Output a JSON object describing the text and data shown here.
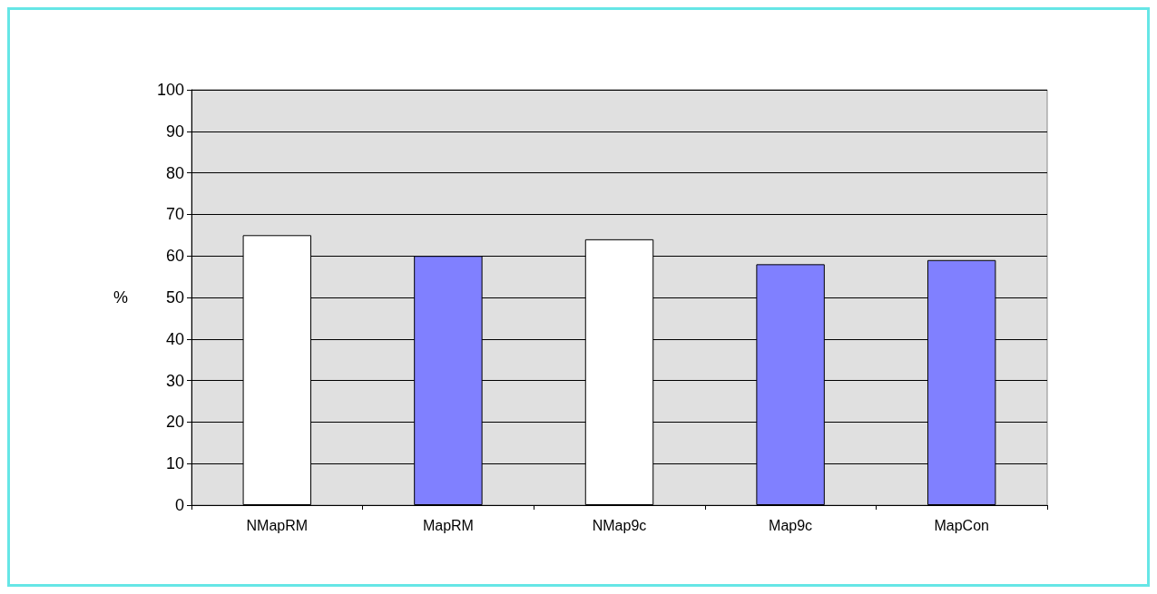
{
  "chart_data": {
    "type": "bar",
    "ylabel": "%",
    "categories": [
      "NMapRM",
      "MapRM",
      "NMap9c",
      "Map9c",
      "MapCon"
    ],
    "values": [
      65,
      60,
      64,
      58,
      59
    ],
    "colors": [
      "#ffffff",
      "#8080ff",
      "#ffffff",
      "#8080ff",
      "#8080ff"
    ],
    "ylim": [
      0,
      100
    ],
    "yticks": [
      0,
      10,
      20,
      30,
      40,
      50,
      60,
      70,
      80,
      90,
      100
    ],
    "grid": "y"
  }
}
